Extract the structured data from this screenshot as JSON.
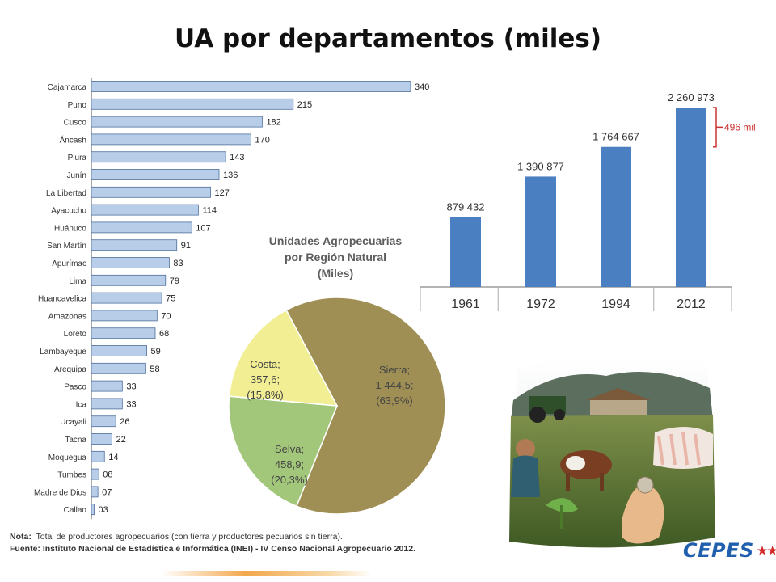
{
  "page": {
    "title": "UA por departamentos (miles)"
  },
  "colors": {
    "dept_bar": "#b8cde8",
    "dept_bar_stroke": "#4f6f9c",
    "year_bar": "#4a7fc1",
    "bracket": "#cc3333",
    "pie_sierra": "#a08f55",
    "pie_selva": "#a3c77a",
    "pie_costa": "#f2ee94"
  },
  "chart_data": [
    {
      "type": "bar",
      "orientation": "horizontal",
      "categories": [
        "Cajamarca",
        "Puno",
        "Cusco",
        "Áncash",
        "Piura",
        "Junín",
        "La Libertad",
        "Ayacucho",
        "Huánuco",
        "San Martín",
        "Apurímac",
        "Lima",
        "Huancavelica",
        "Amazonas",
        "Loreto",
        "Lambayeque",
        "Arequipa",
        "Pasco",
        "Ica",
        "Ucayali",
        "Tacna",
        "Moquegua",
        "Tumbes",
        "Madre de Dios",
        "Callao"
      ],
      "values": [
        340,
        215,
        182,
        170,
        143,
        136,
        127,
        114,
        107,
        91,
        83,
        79,
        75,
        70,
        68,
        59,
        58,
        33,
        33,
        26,
        22,
        14,
        8,
        7,
        3
      ],
      "value_labels": [
        "340",
        "215",
        "182",
        "170",
        "143",
        "136",
        "127",
        "114",
        "107",
        "91",
        "83",
        "79",
        "75",
        "70",
        "68",
        "59",
        "58",
        "33",
        "33",
        "26",
        "22",
        "14",
        "08",
        "07",
        "03"
      ],
      "xlim": [
        0,
        340
      ]
    },
    {
      "type": "pie",
      "title": "Unidades Agropecuarias por Región Natural (Miles)",
      "title_lines": [
        "Unidades Agropecuarias",
        "por Región Natural",
        "(Miles)"
      ],
      "slices": [
        {
          "name": "Sierra",
          "value": 1444.5,
          "percent": 63.9,
          "label_lines": [
            "Sierra;",
            "1 444,5;",
            "(63,9%)"
          ]
        },
        {
          "name": "Selva",
          "value": 458.9,
          "percent": 20.3,
          "label_lines": [
            "Selva;",
            "458,9;",
            "(20,3%)"
          ]
        },
        {
          "name": "Costa",
          "value": 357.6,
          "percent": 15.8,
          "label_lines": [
            "Costa;",
            "357,6;",
            "(15,8%)"
          ]
        }
      ]
    },
    {
      "type": "bar",
      "orientation": "vertical",
      "categories": [
        "1961",
        "1972",
        "1994",
        "2012"
      ],
      "values": [
        879432,
        1390877,
        1764667,
        2260973
      ],
      "value_labels": [
        "879 432",
        "1 390 877",
        "1 764 667",
        "2 260 973"
      ],
      "ylim": [
        0,
        2260973
      ],
      "annotation": "496 mil"
    }
  ],
  "notes": {
    "nota_label": "Nota:",
    "nota_text": "Total de productores agropecuarios (con tierra y productores pecuarios sin tierra).",
    "fuente_label": "Fuente:",
    "fuente_text": "Instituto Nacional de Estadística e Informática (INEI) - IV Censo Nacional Agropecuario 2012."
  },
  "logo": {
    "text": "CEPES"
  }
}
